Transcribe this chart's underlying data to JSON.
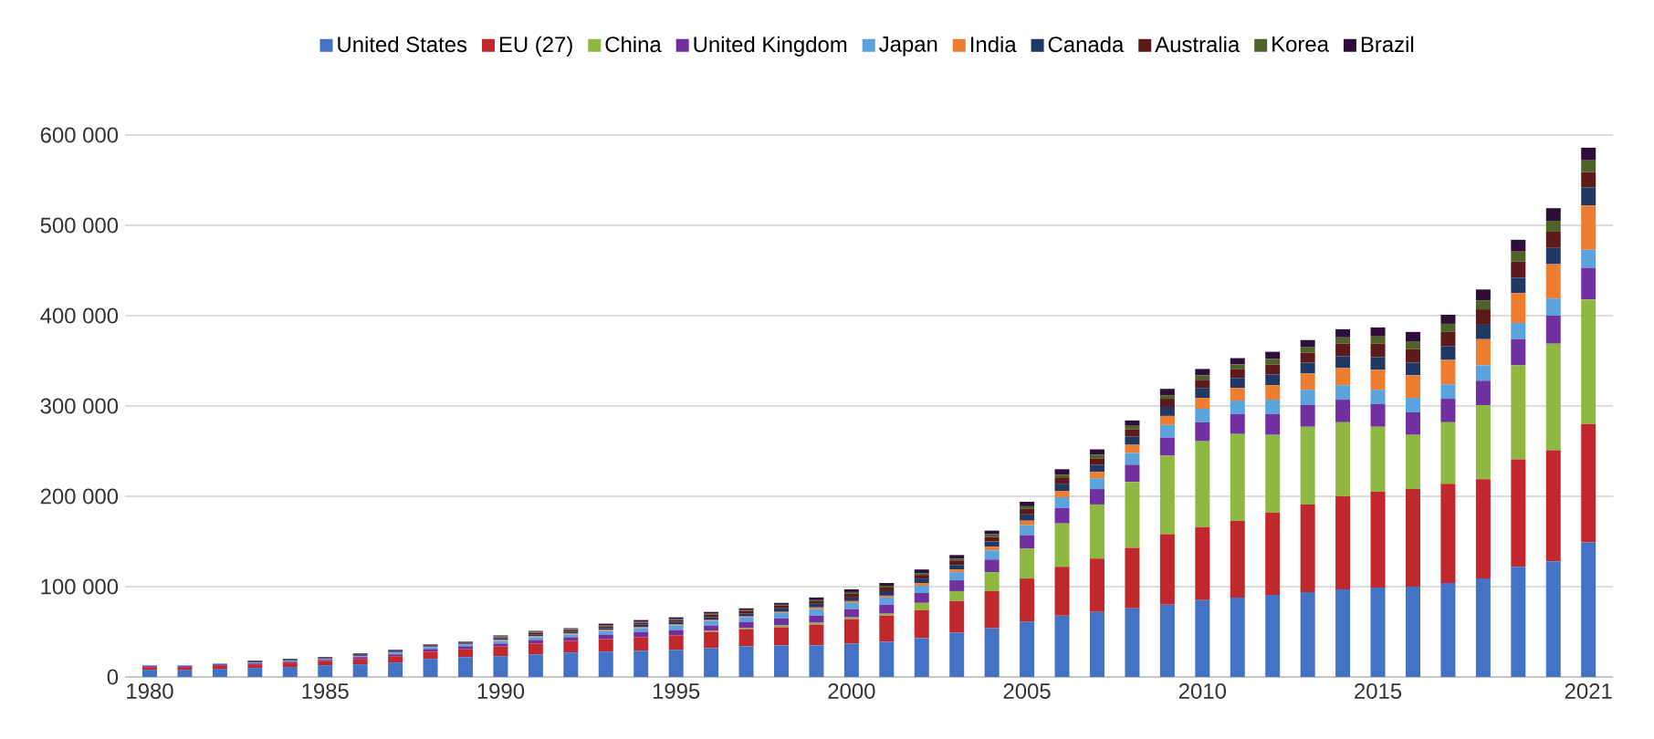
{
  "chart_data": {
    "type": "bar",
    "stacked": true,
    "grid": "y",
    "legend": "top",
    "categories": [
      "1980",
      null,
      null,
      null,
      null,
      "1985",
      null,
      null,
      null,
      null,
      "1990",
      null,
      null,
      null,
      null,
      "1995",
      null,
      null,
      null,
      null,
      "2000",
      null,
      null,
      null,
      null,
      "2005",
      null,
      null,
      null,
      null,
      "2010",
      null,
      null,
      null,
      null,
      "2015",
      null,
      null,
      null,
      null,
      null,
      "2021"
    ],
    "ylim": [
      0,
      600000
    ],
    "yticks": [
      0,
      {
        "value": 100000,
        "label": "100 000"
      },
      {
        "value": 200000,
        "label": "200 000"
      },
      {
        "value": 300000,
        "label": "300 000"
      },
      {
        "value": 400000,
        "label": "400 000"
      },
      {
        "value": 500000,
        "label": "500 000"
      },
      {
        "value": 600000,
        "label": "600 000"
      }
    ],
    "series": [
      {
        "name": "United States",
        "color": "#4472c4",
        "values": [
          8000,
          8000,
          9000,
          10000,
          11000,
          13000,
          14000,
          16000,
          20000,
          22000,
          23000,
          25000,
          27000,
          28000,
          29000,
          30000,
          32000,
          34000,
          35000,
          35000,
          37000,
          39000,
          43000,
          49000,
          54000,
          61000,
          68000,
          72000,
          76000,
          80000,
          85000,
          88000,
          91000,
          94000,
          97000,
          99000,
          100000,
          104000,
          109000,
          122000,
          128000,
          149000
        ]
      },
      {
        "name": "EU (27)",
        "color": "#c0282d",
        "values": [
          3000,
          3000,
          4000,
          4000,
          5000,
          5000,
          6000,
          7000,
          8000,
          9000,
          11000,
          12000,
          13000,
          14000,
          15000,
          16000,
          18000,
          19000,
          20000,
          23000,
          27000,
          29000,
          31000,
          35000,
          41000,
          48000,
          54000,
          59000,
          67000,
          78000,
          81000,
          85000,
          91000,
          97000,
          103000,
          106000,
          108000,
          110000,
          110000,
          119000,
          123000,
          131000
        ]
      },
      {
        "name": "China",
        "color": "#8fb843",
        "values": [
          0,
          0,
          0,
          0,
          0,
          0,
          0,
          0,
          0,
          0,
          0,
          0,
          0,
          0,
          0,
          0,
          1000,
          1000,
          2000,
          2000,
          2000,
          2000,
          8000,
          11000,
          21000,
          33000,
          48000,
          60000,
          73000,
          87000,
          95000,
          96000,
          86000,
          86000,
          82000,
          72000,
          60000,
          68000,
          82000,
          104000,
          118000,
          138000
        ]
      },
      {
        "name": "United Kingdom",
        "color": "#7030a0",
        "values": [
          1000,
          1000,
          1000,
          1000,
          1000,
          1000,
          2000,
          2000,
          3000,
          3000,
          3000,
          4000,
          4000,
          5000,
          6000,
          6000,
          6000,
          7000,
          8000,
          8000,
          9000,
          10000,
          11000,
          12000,
          14000,
          15000,
          17000,
          17000,
          19000,
          20000,
          21000,
          22000,
          23000,
          24000,
          25000,
          25000,
          25000,
          26000,
          27000,
          29000,
          31000,
          35000
        ]
      },
      {
        "name": "Japan",
        "color": "#5ba3dc",
        "values": [
          1000,
          1000,
          1000,
          1000,
          1000,
          1000,
          1000,
          2000,
          2000,
          2000,
          3000,
          3000,
          3000,
          4000,
          4000,
          5000,
          5000,
          5000,
          6000,
          7000,
          7000,
          8000,
          8000,
          9000,
          10000,
          11000,
          12000,
          12000,
          13000,
          14000,
          15000,
          15000,
          16000,
          17000,
          16000,
          16000,
          16000,
          16000,
          17000,
          18000,
          19000,
          20000
        ]
      },
      {
        "name": "India",
        "color": "#ed7d31",
        "values": [
          0,
          0,
          0,
          0,
          0,
          0,
          0,
          0,
          0,
          0,
          1000,
          1000,
          1000,
          1000,
          1000,
          1000,
          1000,
          1000,
          1000,
          2000,
          2000,
          2000,
          3000,
          3000,
          4000,
          5000,
          7000,
          7000,
          9000,
          10000,
          12000,
          14000,
          16000,
          18000,
          19000,
          22000,
          25000,
          27000,
          29000,
          33000,
          38000,
          49000
        ]
      },
      {
        "name": "Canada",
        "color": "#203864",
        "values": [
          0,
          0,
          0,
          1000,
          1000,
          1000,
          1000,
          1000,
          1000,
          1000,
          2000,
          2000,
          2000,
          2000,
          3000,
          3000,
          3000,
          3000,
          4000,
          4000,
          4000,
          5000,
          5000,
          5000,
          6000,
          7000,
          8000,
          8000,
          9000,
          10000,
          11000,
          11000,
          12000,
          12000,
          13000,
          14000,
          14000,
          15000,
          16000,
          17000,
          18000,
          20000
        ]
      },
      {
        "name": "Australia",
        "color": "#5c1a1a",
        "values": [
          0,
          0,
          0,
          1000,
          1000,
          1000,
          1000,
          1000,
          1000,
          1000,
          1000,
          2000,
          2000,
          2000,
          2000,
          2000,
          3000,
          3000,
          3000,
          3000,
          4000,
          4000,
          4000,
          5000,
          5000,
          6000,
          7000,
          7000,
          8000,
          9000,
          9000,
          10000,
          11000,
          11000,
          14000,
          15000,
          15000,
          16000,
          17000,
          18000,
          18000,
          17000
        ]
      },
      {
        "name": "Korea",
        "color": "#4f6228",
        "values": [
          0,
          0,
          0,
          0,
          0,
          0,
          0,
          0,
          0,
          0,
          1000,
          1000,
          1000,
          1000,
          1000,
          1000,
          1000,
          1000,
          1000,
          1000,
          2000,
          2000,
          2000,
          2000,
          3000,
          3000,
          3000,
          4000,
          4000,
          4000,
          5000,
          5000,
          6000,
          6000,
          7000,
          8000,
          8000,
          9000,
          10000,
          11000,
          12000,
          13000
        ]
      },
      {
        "name": "Brazil",
        "color": "#2e0f3a",
        "values": [
          0,
          0,
          0,
          0,
          0,
          0,
          1000,
          1000,
          1000,
          1000,
          1000,
          1000,
          1000,
          2000,
          2000,
          2000,
          2000,
          2000,
          2000,
          3000,
          3000,
          3000,
          4000,
          4000,
          4000,
          5000,
          6000,
          6000,
          6000,
          7000,
          7000,
          7000,
          8000,
          8000,
          9000,
          10000,
          11000,
          10000,
          12000,
          13000,
          14000,
          14000
        ]
      }
    ]
  }
}
